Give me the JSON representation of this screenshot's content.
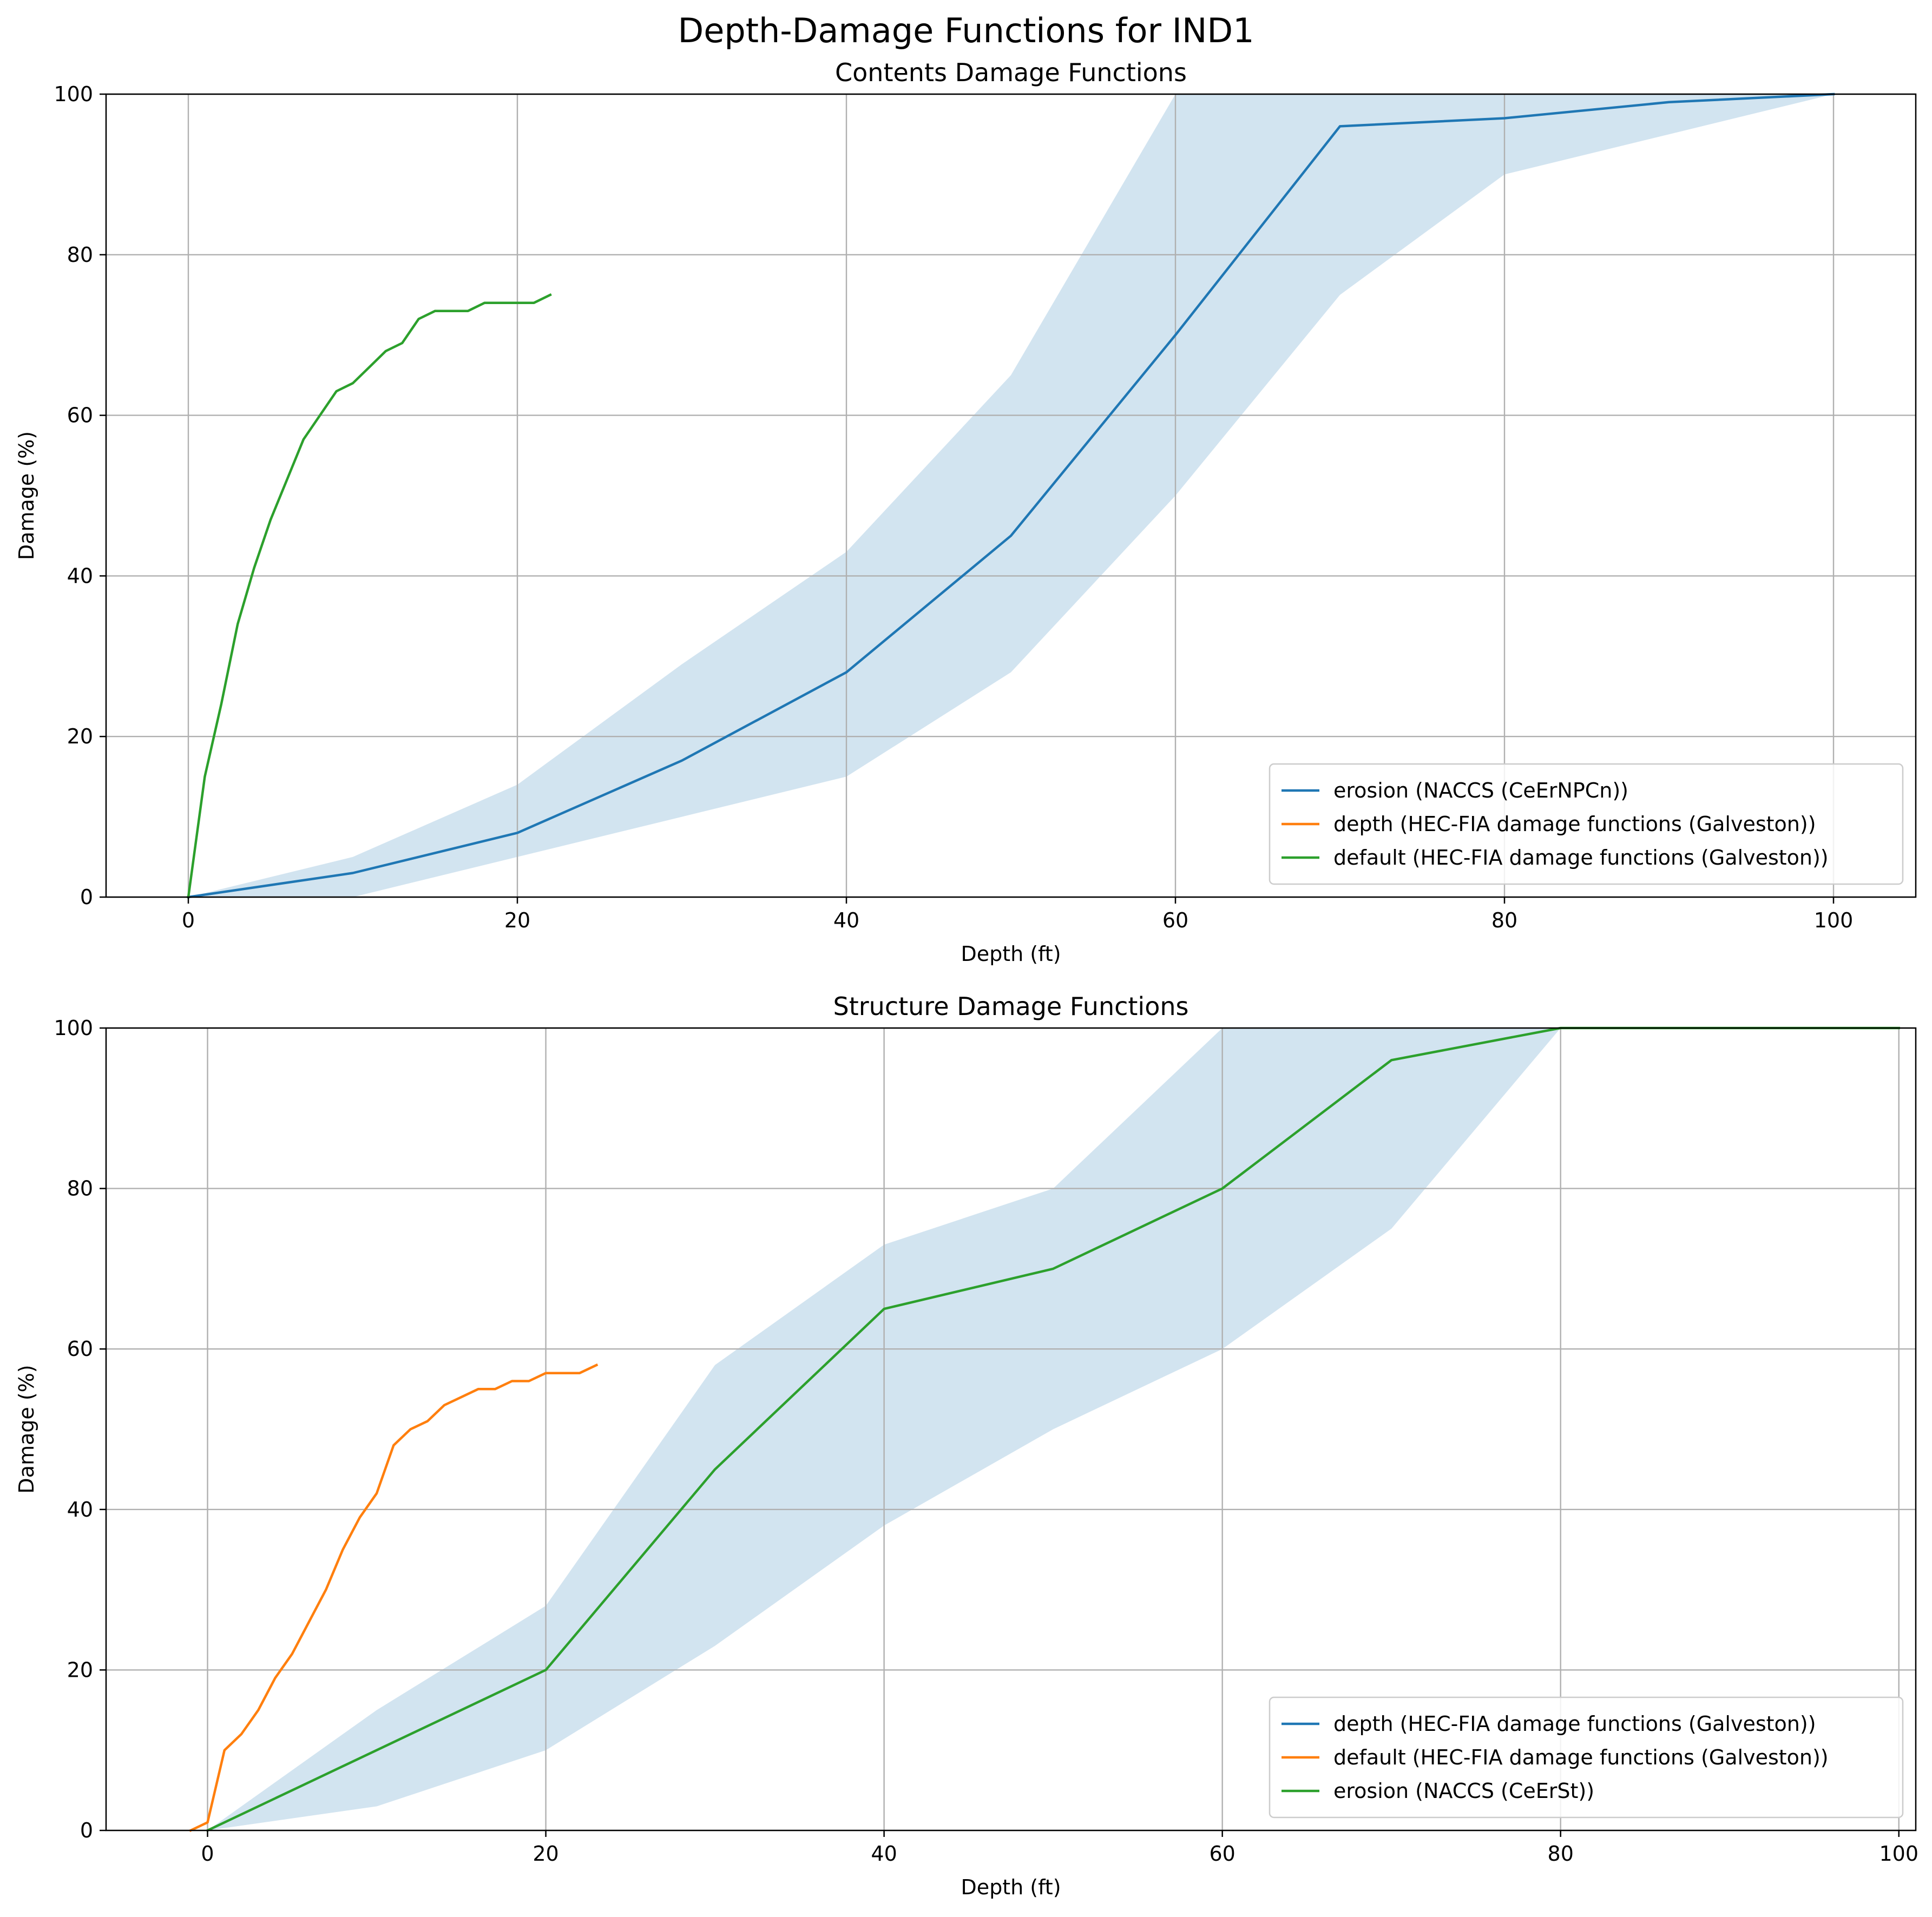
{
  "figure": {
    "title": "Depth-Damage Functions for IND1"
  },
  "colors": {
    "blue": "#1f77b4",
    "orange": "#ff7f0e",
    "green": "#2ca02c",
    "band": "#1f77b4",
    "grid": "#b0b0b0"
  },
  "chart_data": [
    {
      "type": "line",
      "title": "Contents Damage Functions",
      "xlabel": "Depth (ft)",
      "ylabel": "Damage (%)",
      "xlim": [
        -5,
        105
      ],
      "ylim": [
        0,
        100
      ],
      "xticks": [
        0,
        20,
        40,
        60,
        80,
        100
      ],
      "yticks": [
        0,
        20,
        40,
        60,
        80,
        100
      ],
      "grid": true,
      "legend_position": "lower right",
      "legend": [
        "erosion (NACCS (CeErNPCn))",
        "depth (HEC-FIA damage functions (Galveston))",
        "default (HEC-FIA damage functions (Galveston))"
      ],
      "series": [
        {
          "name": "erosion (NACCS (CeErNPCn))",
          "color": "blue",
          "x": [
            0,
            10,
            20,
            30,
            40,
            50,
            60,
            70,
            80,
            90,
            100
          ],
          "y": [
            0,
            3,
            8,
            17,
            28,
            45,
            70,
            96,
            97,
            99,
            100
          ]
        },
        {
          "name": "depth (HEC-FIA damage functions (Galveston))",
          "color": "orange",
          "x": [],
          "y": []
        },
        {
          "name": "default (HEC-FIA damage functions (Galveston))",
          "color": "green",
          "x": [
            0,
            1,
            2,
            3,
            4,
            5,
            6,
            7,
            8,
            9,
            10,
            11,
            12,
            13,
            14,
            15,
            16,
            17,
            18,
            19,
            20,
            21,
            22
          ],
          "y": [
            0,
            15,
            24,
            34,
            41,
            47,
            52,
            57,
            60,
            63,
            64,
            66,
            68,
            69,
            72,
            73,
            73,
            73,
            74,
            74,
            74,
            74,
            75
          ]
        }
      ],
      "band": {
        "x": [
          0,
          10,
          20,
          30,
          40,
          50,
          60,
          70,
          80,
          90,
          100
        ],
        "lower": [
          0,
          0,
          5,
          10,
          15,
          28,
          50,
          75,
          90,
          95,
          100
        ],
        "upper": [
          0,
          5,
          14,
          29,
          43,
          65,
          100,
          100,
          100,
          100,
          100
        ]
      }
    },
    {
      "type": "line",
      "title": "Structure Damage Functions",
      "xlabel": "Depth (ft)",
      "ylabel": "Damage (%)",
      "xlim": [
        -6,
        101
      ],
      "ylim": [
        0,
        100
      ],
      "xticks": [
        0,
        20,
        40,
        60,
        80,
        100
      ],
      "yticks": [
        0,
        20,
        40,
        60,
        80,
        100
      ],
      "grid": true,
      "legend_position": "lower right",
      "legend": [
        "depth (HEC-FIA damage functions (Galveston))",
        "default (HEC-FIA damage functions (Galveston))",
        "erosion (NACCS (CeErSt))"
      ],
      "series": [
        {
          "name": "depth (HEC-FIA damage functions (Galveston))",
          "color": "blue",
          "x": [],
          "y": []
        },
        {
          "name": "default (HEC-FIA damage functions (Galveston))",
          "color": "orange",
          "x": [
            -1,
            0,
            1,
            2,
            3,
            4,
            5,
            6,
            7,
            8,
            9,
            10,
            11,
            12,
            13,
            14,
            15,
            16,
            17,
            18,
            19,
            20,
            21,
            22,
            23
          ],
          "y": [
            0,
            1,
            10,
            12,
            15,
            19,
            22,
            26,
            30,
            35,
            39,
            42,
            48,
            50,
            51,
            53,
            54,
            55,
            55,
            56,
            56,
            57,
            57,
            57,
            58
          ]
        },
        {
          "name": "erosion (NACCS (CeErSt))",
          "color": "green",
          "x": [
            0,
            10,
            20,
            30,
            40,
            50,
            60,
            70,
            80,
            90,
            100
          ],
          "y": [
            0,
            10,
            20,
            45,
            65,
            70,
            80,
            96,
            100,
            100,
            100
          ]
        }
      ],
      "band": {
        "x": [
          0,
          10,
          20,
          30,
          40,
          50,
          60,
          70,
          80,
          90,
          100
        ],
        "lower": [
          0,
          3,
          10,
          23,
          38,
          50,
          60,
          75,
          100,
          100,
          100
        ],
        "upper": [
          0,
          15,
          28,
          58,
          73,
          80,
          100,
          100,
          100,
          100,
          100
        ]
      }
    }
  ]
}
